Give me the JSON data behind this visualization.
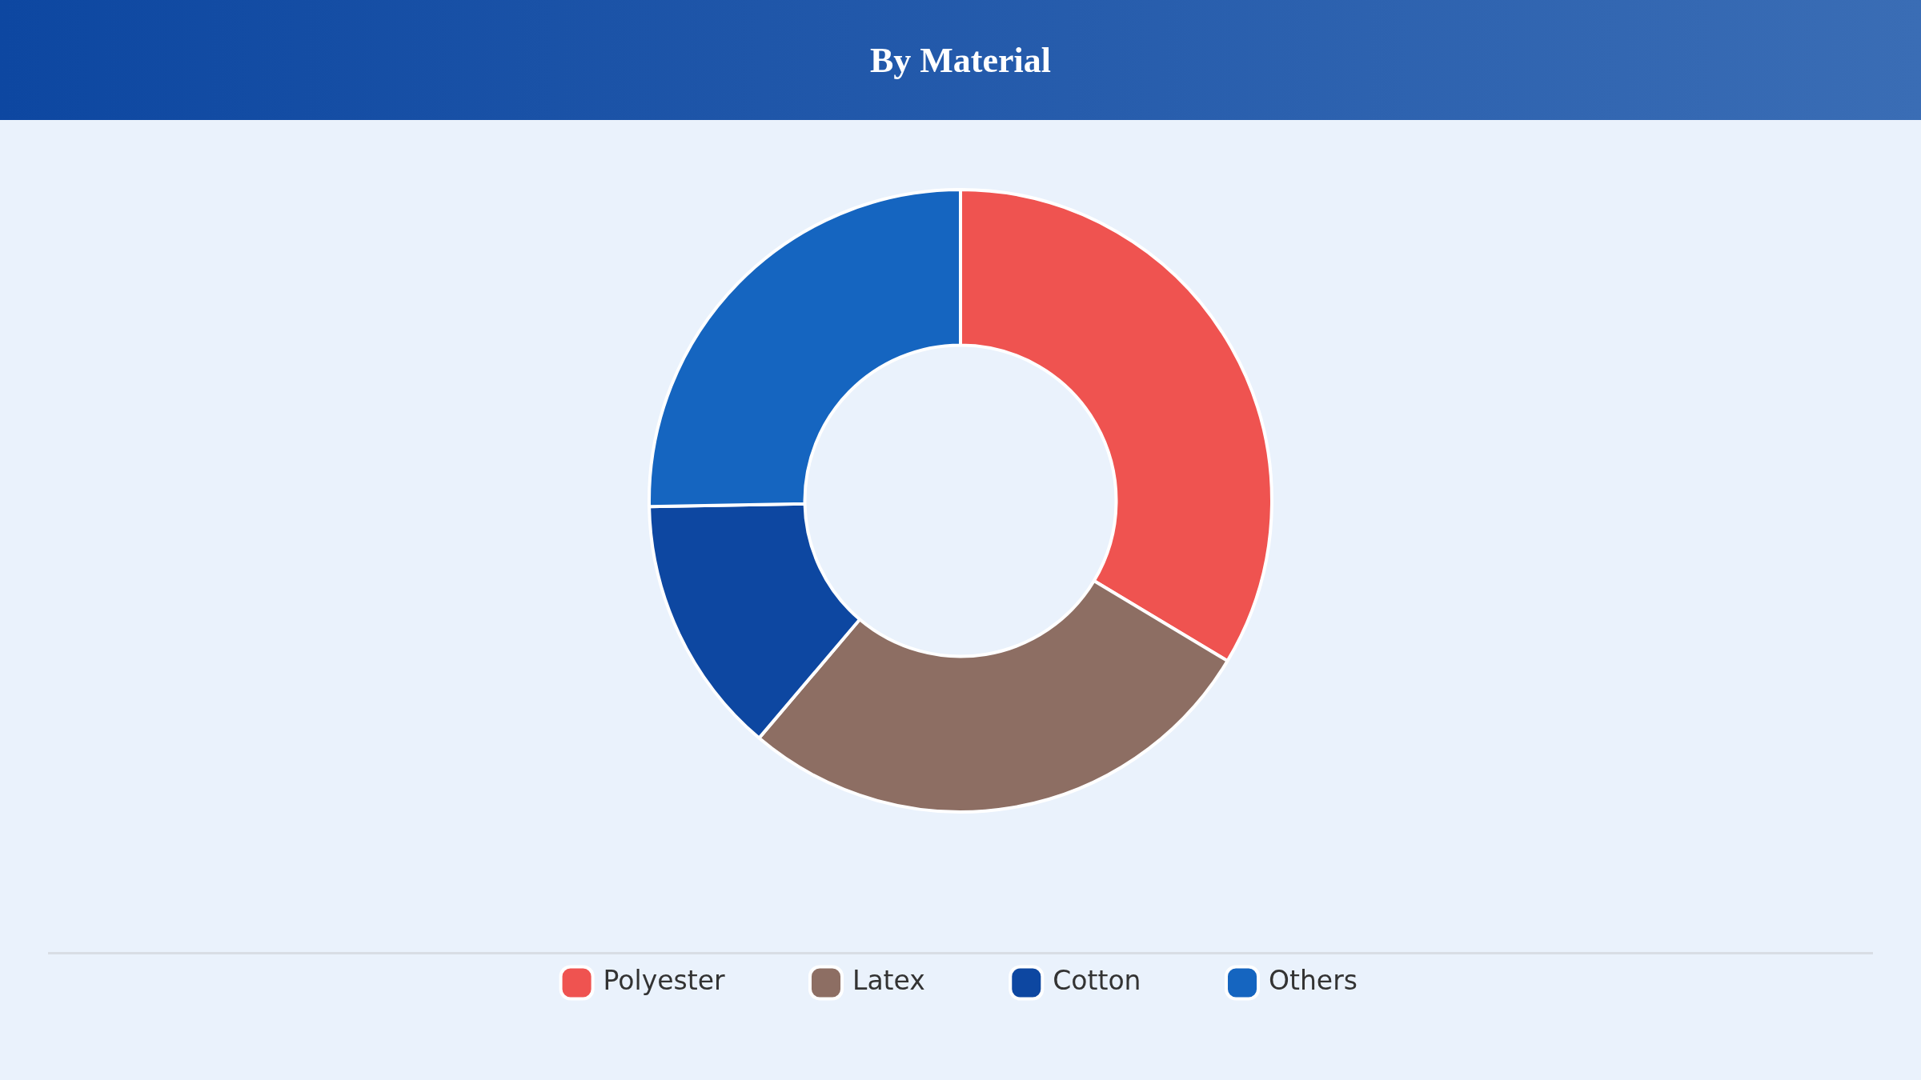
{
  "chart_data": {
    "type": "donut",
    "title": "By Material",
    "categories": [
      "Polyester",
      "Latex",
      "Cotton",
      "Others"
    ],
    "values": [
      33.6,
      27.6,
      13.5,
      25.3
    ],
    "colors": [
      "#ef5350",
      "#8d6e63",
      "#0d47a1",
      "#1565c0"
    ],
    "legend": "bottom"
  }
}
